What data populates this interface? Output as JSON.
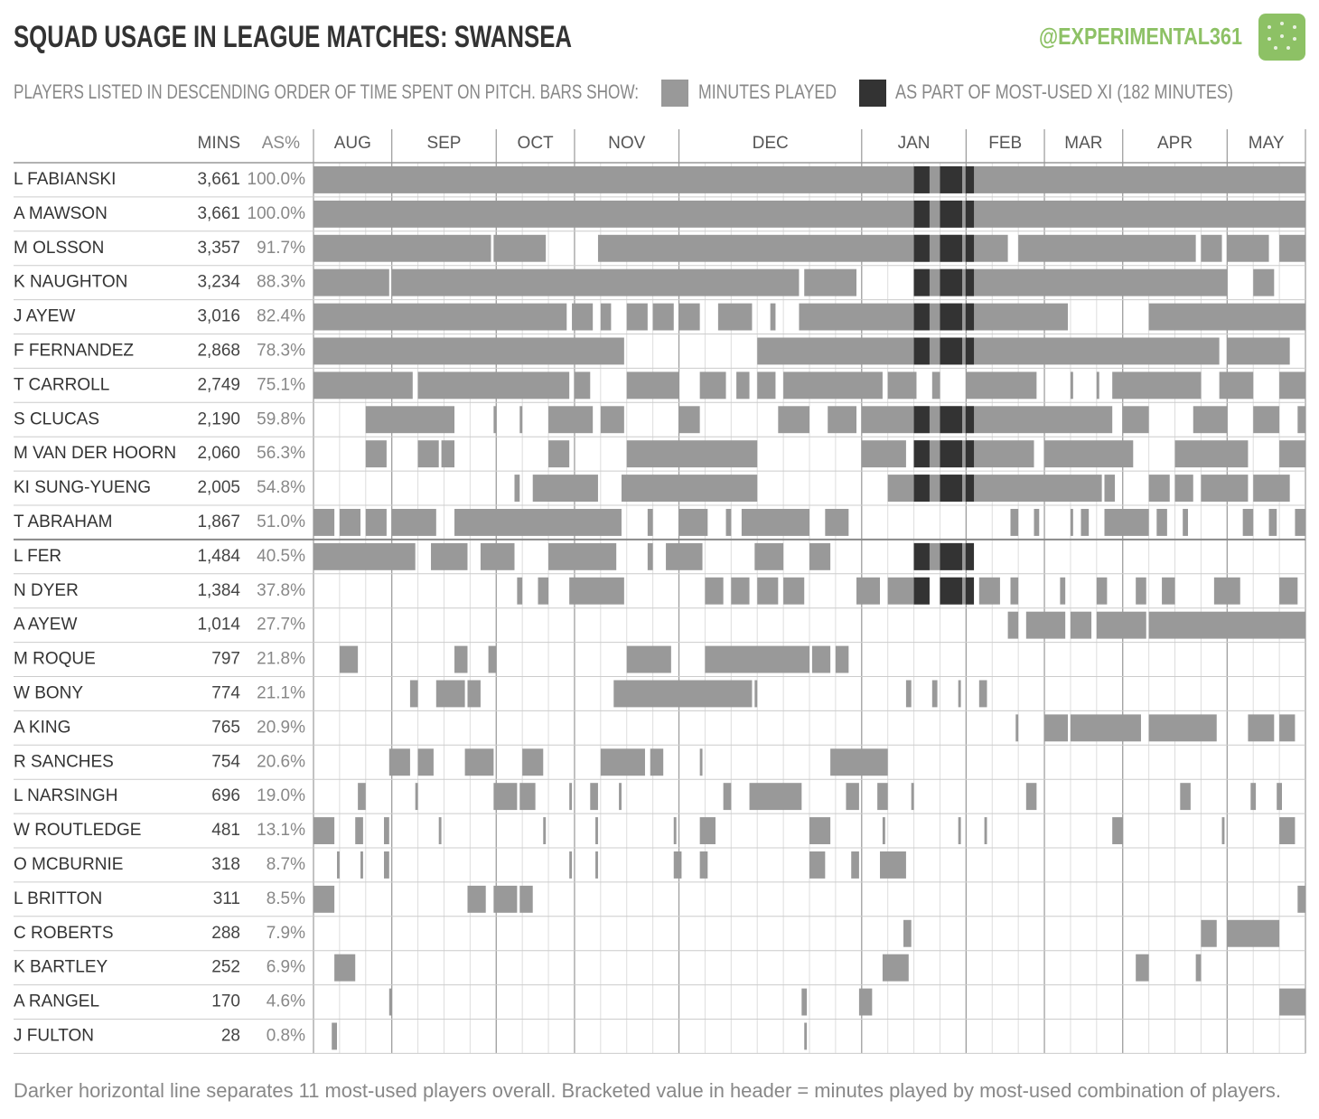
{
  "chart_data": {
    "type": "gantt",
    "title": "SQUAD USAGE IN LEAGUE MATCHES:",
    "team": "SWANSEA",
    "handle": "@EXPERIMENTAL361",
    "subtitle": "PLAYERS LISTED IN DESCENDING ORDER OF TIME SPENT ON PITCH. BARS SHOW:",
    "legend": {
      "played": "MINUTES PLAYED",
      "xi": "AS PART OF MOST-USED XI (182 MINUTES)"
    },
    "columns": {
      "mins": "MINS",
      "pct": "AS%"
    },
    "footnote": "Darker horizontal line separates 11 most-used players overall.  Bracketed value in header = minutes played by most-used combination of players.",
    "colors": {
      "played": "#999999",
      "xi": "#333333",
      "handle": "#8dc165"
    },
    "xlim": [
      0,
      38
    ],
    "separator_after": 11,
    "months": [
      {
        "label": "AUG",
        "start": 0,
        "end": 3
      },
      {
        "label": "SEP",
        "start": 3,
        "end": 7
      },
      {
        "label": "OCT",
        "start": 7,
        "end": 10
      },
      {
        "label": "NOV",
        "start": 10,
        "end": 14
      },
      {
        "label": "DEC",
        "start": 14,
        "end": 21
      },
      {
        "label": "JAN",
        "start": 21,
        "end": 25
      },
      {
        "label": "FEB",
        "start": 25,
        "end": 28
      },
      {
        "label": "MAR",
        "start": 28,
        "end": 31
      },
      {
        "label": "APR",
        "start": 31,
        "end": 35
      },
      {
        "label": "MAY",
        "start": 35,
        "end": 38
      }
    ],
    "xi_spans": [
      [
        23.0,
        23.6
      ],
      [
        24.0,
        24.85
      ],
      [
        24.98,
        25.3
      ]
    ],
    "players": [
      {
        "name": "L FABIANSKI",
        "mins": "3,661",
        "pct": "100.0%",
        "in_xi": true,
        "spans": [
          [
            0,
            38
          ]
        ]
      },
      {
        "name": "A MAWSON",
        "mins": "3,661",
        "pct": "100.0%",
        "in_xi": true,
        "spans": [
          [
            0,
            38
          ]
        ]
      },
      {
        "name": "M OLSSON",
        "mins": "3,357",
        "pct": "91.7%",
        "in_xi": true,
        "spans": [
          [
            0,
            6.8
          ],
          [
            6.9,
            8.9
          ],
          [
            10.9,
            26.6
          ],
          [
            27,
            33.8
          ],
          [
            34,
            34.8
          ],
          [
            35,
            36.6
          ],
          [
            37,
            38
          ]
        ]
      },
      {
        "name": "K NAUGHTON",
        "mins": "3,234",
        "pct": "88.3%",
        "in_xi": true,
        "spans": [
          [
            0,
            2.9
          ],
          [
            3,
            18.6
          ],
          [
            18.8,
            20.8
          ],
          [
            23,
            35
          ],
          [
            36,
            36.8
          ]
        ]
      },
      {
        "name": "J AYEW",
        "mins": "3,016",
        "pct": "82.4%",
        "in_xi": true,
        "spans": [
          [
            0,
            9.7
          ],
          [
            9.9,
            10.7
          ],
          [
            11,
            11.4
          ],
          [
            12,
            12.8
          ],
          [
            13,
            13.8
          ],
          [
            14,
            14.8
          ],
          [
            15.5,
            16.8
          ],
          [
            17.5,
            17.7
          ],
          [
            18.6,
            28.9
          ],
          [
            32,
            38
          ]
        ]
      },
      {
        "name": "F FERNANDEZ",
        "mins": "2,868",
        "pct": "78.3%",
        "in_xi": true,
        "spans": [
          [
            0,
            11.9
          ],
          [
            17,
            34.7
          ],
          [
            35,
            37.4
          ]
        ]
      },
      {
        "name": "T CARROLL",
        "mins": "2,749",
        "pct": "75.1%",
        "in_xi": false,
        "spans": [
          [
            0,
            3.8
          ],
          [
            4,
            9.8
          ],
          [
            10,
            10.6
          ],
          [
            12,
            14
          ],
          [
            14.8,
            15.8
          ],
          [
            16.2,
            16.7
          ],
          [
            17,
            17.7
          ],
          [
            18,
            21.8
          ],
          [
            22,
            23.1
          ],
          [
            23.7,
            24
          ],
          [
            25,
            27.7
          ],
          [
            29,
            29.1
          ],
          [
            30,
            30.1
          ],
          [
            30.6,
            34
          ],
          [
            34.7,
            36
          ],
          [
            37,
            38
          ]
        ]
      },
      {
        "name": "S CLUCAS",
        "mins": "2,190",
        "pct": "59.8%",
        "in_xi": true,
        "spans": [
          [
            2,
            5.4
          ],
          [
            6.9,
            7
          ],
          [
            7.9,
            8
          ],
          [
            9,
            10.7
          ],
          [
            11,
            11.9
          ],
          [
            14,
            14.8
          ],
          [
            17.8,
            19
          ],
          [
            19.7,
            20.8
          ],
          [
            21,
            30.6
          ],
          [
            31,
            32
          ],
          [
            33.7,
            35
          ],
          [
            36,
            37
          ],
          [
            37.7,
            38
          ]
        ]
      },
      {
        "name": "M VAN DER HOORN",
        "mins": "2,060",
        "pct": "56.3%",
        "in_xi": true,
        "spans": [
          [
            2,
            2.8
          ],
          [
            4,
            4.8
          ],
          [
            4.9,
            5.4
          ],
          [
            9,
            9.8
          ],
          [
            12,
            17
          ],
          [
            21,
            22.7
          ],
          [
            23,
            27.6
          ],
          [
            28,
            31.4
          ],
          [
            33,
            35.8
          ],
          [
            37,
            38
          ]
        ]
      },
      {
        "name": "KI SUNG-YUENG",
        "mins": "2,005",
        "pct": "54.8%",
        "in_xi": true,
        "spans": [
          [
            7.7,
            7.9
          ],
          [
            8.4,
            10.9
          ],
          [
            11.8,
            17
          ],
          [
            22,
            30.2
          ],
          [
            30.3,
            30.7
          ],
          [
            32,
            32.8
          ],
          [
            33,
            33.7
          ],
          [
            34,
            35.8
          ],
          [
            36,
            37.4
          ]
        ]
      },
      {
        "name": "T ABRAHAM",
        "mins": "1,867",
        "pct": "51.0%",
        "in_xi": false,
        "spans": [
          [
            0,
            0.8
          ],
          [
            1,
            1.8
          ],
          [
            2,
            2.8
          ],
          [
            3,
            4.7
          ],
          [
            5.4,
            11.8
          ],
          [
            12.8,
            13
          ],
          [
            14,
            15.1
          ],
          [
            15.8,
            16
          ],
          [
            16.4,
            19
          ],
          [
            19.6,
            20.5
          ],
          [
            26.7,
            27
          ],
          [
            27.6,
            27.8
          ],
          [
            29,
            29.1
          ],
          [
            29.4,
            29.7
          ],
          [
            30.3,
            32
          ],
          [
            32.3,
            32.7
          ],
          [
            33.3,
            33.5
          ],
          [
            35.6,
            36
          ],
          [
            36.6,
            36.9
          ],
          [
            37.6,
            38
          ]
        ]
      },
      {
        "name": "L FER",
        "mins": "1,484",
        "pct": "40.5%",
        "in_xi": true,
        "spans": [
          [
            0,
            3.9
          ],
          [
            4.5,
            5.9
          ],
          [
            6.4,
            7.7
          ],
          [
            9,
            11.6
          ],
          [
            12.8,
            13
          ],
          [
            13.5,
            14.9
          ],
          [
            16.9,
            18
          ],
          [
            19,
            19.8
          ],
          [
            23,
            25.3
          ]
        ]
      },
      {
        "name": "N DYER",
        "mins": "1,384",
        "pct": "37.8%",
        "in_xi": true,
        "spans": [
          [
            7.8,
            8
          ],
          [
            8.6,
            9
          ],
          [
            9.8,
            11.9
          ],
          [
            15,
            15.7
          ],
          [
            16,
            16.7
          ],
          [
            17,
            17.8
          ],
          [
            18,
            18.8
          ],
          [
            20.8,
            21.7
          ],
          [
            22,
            23.6
          ],
          [
            24,
            25.3
          ],
          [
            25.5,
            26.3
          ],
          [
            26.7,
            27
          ],
          [
            28.6,
            28.8
          ],
          [
            30,
            30.4
          ],
          [
            31.5,
            31.9
          ],
          [
            32.5,
            33
          ],
          [
            34.5,
            35.5
          ],
          [
            37,
            37.7
          ]
        ]
      },
      {
        "name": "A AYEW",
        "mins": "1,014",
        "pct": "27.7%",
        "in_xi": false,
        "spans": [
          [
            26.6,
            27
          ],
          [
            27.3,
            28.8
          ],
          [
            29,
            29.8
          ],
          [
            30,
            31.9
          ],
          [
            32,
            38
          ]
        ]
      },
      {
        "name": "M ROQUE",
        "mins": "797",
        "pct": "21.8%",
        "in_xi": false,
        "spans": [
          [
            1,
            1.7
          ],
          [
            5.4,
            5.9
          ],
          [
            6.7,
            7
          ],
          [
            12,
            13.7
          ],
          [
            15,
            19
          ],
          [
            19.1,
            19.8
          ],
          [
            20,
            20.5
          ]
        ]
      },
      {
        "name": "W BONY",
        "mins": "774",
        "pct": "21.1%",
        "in_xi": false,
        "spans": [
          [
            3.7,
            4
          ],
          [
            4.7,
            5.8
          ],
          [
            5.9,
            6.4
          ],
          [
            11.5,
            16.8
          ],
          [
            16.9,
            17
          ],
          [
            22.7,
            22.9
          ],
          [
            23.7,
            23.9
          ],
          [
            24.7,
            24.8
          ],
          [
            25.5,
            25.8
          ]
        ]
      },
      {
        "name": "A KING",
        "mins": "765",
        "pct": "20.9%",
        "in_xi": false,
        "spans": [
          [
            26.9,
            27
          ],
          [
            28,
            28.9
          ],
          [
            29,
            31.7
          ],
          [
            32,
            34.6
          ],
          [
            35.8,
            36.8
          ],
          [
            37,
            37.6
          ]
        ]
      },
      {
        "name": "R SANCHES",
        "mins": "754",
        "pct": "20.6%",
        "in_xi": false,
        "spans": [
          [
            2.9,
            3.7
          ],
          [
            4,
            4.6
          ],
          [
            5.8,
            6.9
          ],
          [
            8,
            8.8
          ],
          [
            11,
            12.7
          ],
          [
            12.9,
            13.4
          ],
          [
            14.8,
            14.9
          ],
          [
            19.8,
            22
          ]
        ]
      },
      {
        "name": "L NARSINGH",
        "mins": "696",
        "pct": "19.0%",
        "in_xi": false,
        "spans": [
          [
            1.7,
            2
          ],
          [
            3.9,
            4
          ],
          [
            6.9,
            7.8
          ],
          [
            7.9,
            8.5
          ],
          [
            9.8,
            9.9
          ],
          [
            10.6,
            10.9
          ],
          [
            11.7,
            11.8
          ],
          [
            15.7,
            16
          ],
          [
            16.7,
            18.7
          ],
          [
            20.4,
            20.9
          ],
          [
            21.6,
            22
          ],
          [
            22.9,
            23
          ],
          [
            27.3,
            27.7
          ],
          [
            33.2,
            33.6
          ],
          [
            35.9,
            36.1
          ],
          [
            36.9,
            37.1
          ]
        ]
      },
      {
        "name": "W ROUTLEDGE",
        "mins": "481",
        "pct": "13.1%",
        "in_xi": false,
        "spans": [
          [
            0,
            0.8
          ],
          [
            1.6,
            1.9
          ],
          [
            2.7,
            2.9
          ],
          [
            4.8,
            4.9
          ],
          [
            8.8,
            8.9
          ],
          [
            10.8,
            10.9
          ],
          [
            13.8,
            13.9
          ],
          [
            14.8,
            15.4
          ],
          [
            19,
            19.8
          ],
          [
            21.8,
            21.9
          ],
          [
            24.7,
            24.8
          ],
          [
            25.7,
            25.8
          ],
          [
            30.6,
            31
          ],
          [
            34.8,
            34.9
          ],
          [
            37,
            37.6
          ]
        ]
      },
      {
        "name": "O MCBURNIE",
        "mins": "318",
        "pct": "8.7%",
        "in_xi": false,
        "spans": [
          [
            0.9,
            1
          ],
          [
            1.8,
            1.9
          ],
          [
            2.7,
            2.9
          ],
          [
            9.8,
            9.9
          ],
          [
            10.8,
            10.9
          ],
          [
            13.8,
            14.1
          ],
          [
            14.8,
            15.1
          ],
          [
            19,
            19.6
          ],
          [
            20.6,
            20.9
          ],
          [
            21.7,
            22.7
          ]
        ]
      },
      {
        "name": "L BRITTON",
        "mins": "311",
        "pct": "8.5%",
        "in_xi": false,
        "spans": [
          [
            0,
            0.8
          ],
          [
            5.9,
            6.6
          ],
          [
            6.9,
            7.8
          ],
          [
            7.9,
            8.4
          ],
          [
            37.7,
            38
          ]
        ]
      },
      {
        "name": "C ROBERTS",
        "mins": "288",
        "pct": "7.9%",
        "in_xi": false,
        "spans": [
          [
            22.6,
            22.9
          ],
          [
            34,
            34.6
          ],
          [
            35,
            37
          ]
        ]
      },
      {
        "name": "K BARTLEY",
        "mins": "252",
        "pct": "6.9%",
        "in_xi": false,
        "spans": [
          [
            0.8,
            1.6
          ],
          [
            21.8,
            22.8
          ],
          [
            31.5,
            32
          ],
          [
            33.8,
            34
          ]
        ]
      },
      {
        "name": "A RANGEL",
        "mins": "170",
        "pct": "4.6%",
        "in_xi": false,
        "spans": [
          [
            2.9,
            3
          ],
          [
            18.7,
            18.9
          ],
          [
            20.9,
            21.4
          ],
          [
            37,
            38
          ]
        ]
      },
      {
        "name": "J FULTON",
        "mins": "28",
        "pct": "0.8%",
        "in_xi": false,
        "spans": [
          [
            0.7,
            0.9
          ],
          [
            18.8,
            18.9
          ]
        ]
      }
    ]
  }
}
